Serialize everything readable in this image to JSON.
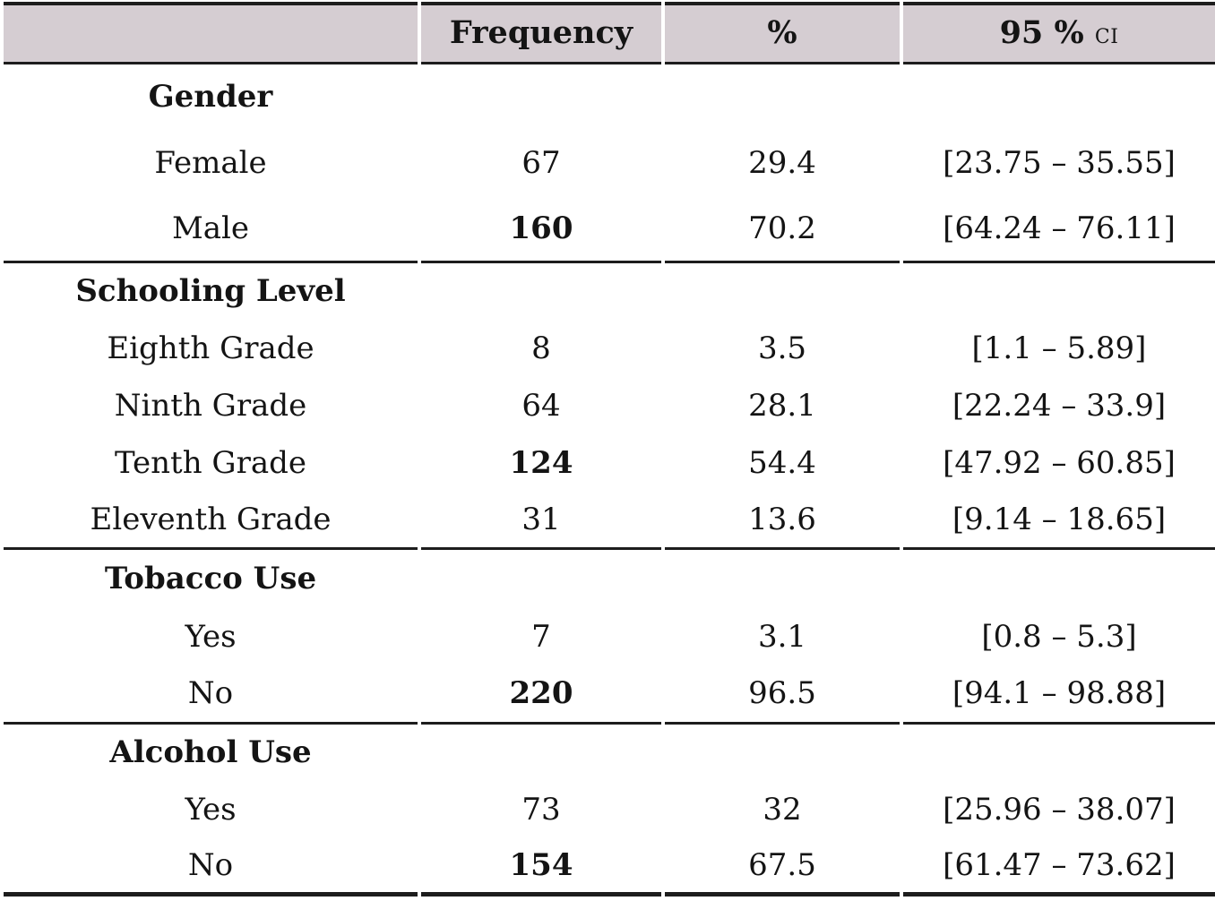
{
  "colors": {
    "header_bg": "#d5cdd2",
    "rule": "#1d1d1d",
    "text": "#141414",
    "page_bg": "#ffffff"
  },
  "header": {
    "row_label": "",
    "frequency": "Frequency",
    "percent": "%",
    "ci_main": "95 %",
    "ci_sub": "CI"
  },
  "sections": [
    {
      "title": "Gender",
      "rows": [
        {
          "label": "Female",
          "frequency": "67",
          "frequency_bold": false,
          "percent": "29.4",
          "ci": "[23.75 – 35.55]"
        },
        {
          "label": "Male",
          "frequency": "160",
          "frequency_bold": true,
          "percent": "70.2",
          "ci": "[64.24 – 76.11]"
        }
      ]
    },
    {
      "title": "Schooling Level",
      "rows": [
        {
          "label": "Eighth Grade",
          "frequency": "8",
          "frequency_bold": false,
          "percent": "3.5",
          "ci": "[1.1 – 5.89]"
        },
        {
          "label": "Ninth Grade",
          "frequency": "64",
          "frequency_bold": false,
          "percent": "28.1",
          "ci": "[22.24 – 33.9]"
        },
        {
          "label": "Tenth Grade",
          "frequency": "124",
          "frequency_bold": true,
          "percent": "54.4",
          "ci": "[47.92 – 60.85]"
        },
        {
          "label": "Eleventh Grade",
          "frequency": "31",
          "frequency_bold": false,
          "percent": "13.6",
          "ci": "[9.14 – 18.65]"
        }
      ]
    },
    {
      "title": "Tobacco Use",
      "rows": [
        {
          "label": "Yes",
          "frequency": "7",
          "frequency_bold": false,
          "percent": "3.1",
          "ci": "[0.8 – 5.3]"
        },
        {
          "label": "No",
          "frequency": "220",
          "frequency_bold": true,
          "percent": "96.5",
          "ci": "[94.1 – 98.88]"
        }
      ]
    },
    {
      "title": "Alcohol Use",
      "rows": [
        {
          "label": "Yes",
          "frequency": "73",
          "frequency_bold": false,
          "percent": "32",
          "ci": "[25.96 – 38.07]"
        },
        {
          "label": "No",
          "frequency": "154",
          "frequency_bold": true,
          "percent": "67.5",
          "ci": "[61.47 – 73.62]"
        }
      ]
    }
  ]
}
